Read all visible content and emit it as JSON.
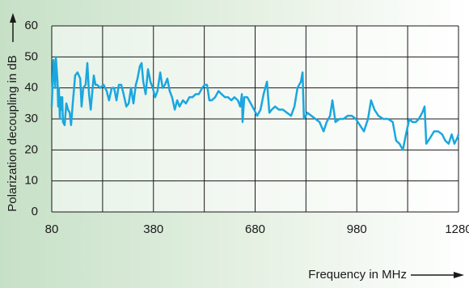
{
  "chart_data": {
    "type": "line",
    "ylabel": "Polarization decoupling in dB",
    "xlabel": "Frequency in MHz",
    "xlim": [
      80,
      1280
    ],
    "ylim": [
      0,
      60
    ],
    "xticks": [
      80,
      380,
      680,
      980,
      1280
    ],
    "xgrid": [
      80,
      230,
      380,
      530,
      680,
      830,
      980,
      1130,
      1280
    ],
    "yticks": [
      0,
      10,
      20,
      30,
      40,
      50,
      60
    ],
    "grid": true,
    "series": [
      {
        "name": "Polarization decoupling",
        "color": "#1aa7e0",
        "x": [
          80,
          85,
          90,
          92,
          97,
          99,
          101,
          104,
          106,
          109,
          111,
          113,
          118,
          123,
          128,
          133,
          137,
          142,
          149,
          156,
          164,
          168,
          173,
          180,
          185,
          190,
          195,
          199,
          204,
          209,
          214,
          223,
          233,
          242,
          249,
          257,
          264,
          271,
          278,
          285,
          292,
          300,
          307,
          314,
          321,
          328,
          333,
          340,
          345,
          350,
          357,
          364,
          371,
          378,
          385,
          392,
          400,
          407,
          414,
          421,
          428,
          435,
          443,
          450,
          457,
          467,
          476,
          486,
          495,
          505,
          514,
          524,
          531,
          538,
          545,
          552,
          562,
          572,
          581,
          591,
          600,
          610,
          619,
          629,
          636,
          641,
          643,
          648,
          657,
          667,
          677,
          686,
          696,
          705,
          715,
          722,
          729,
          739,
          750,
          762,
          774,
          786,
          796,
          805,
          815,
          820,
          824,
          834,
          846,
          858,
          870,
          882,
          891,
          901,
          908,
          917,
          929,
          941,
          953,
          965,
          977,
          989,
          1001,
          1013,
          1022,
          1032,
          1044,
          1058,
          1072,
          1086,
          1096,
          1106,
          1116,
          1125,
          1135,
          1144,
          1154,
          1163,
          1173,
          1180,
          1185,
          1197,
          1208,
          1220,
          1232,
          1241,
          1251,
          1260,
          1268,
          1277,
          1280
        ],
        "values": [
          34,
          49,
          40,
          50,
          42,
          34,
          40,
          30,
          37,
          33,
          37,
          29,
          28,
          35,
          33,
          32,
          28,
          35,
          44,
          45,
          43,
          34,
          40,
          41,
          48,
          38,
          33,
          38,
          44,
          41,
          41,
          40,
          41,
          39,
          36,
          40,
          40,
          36,
          41,
          41,
          38,
          34,
          35,
          40,
          35,
          41,
          43,
          47,
          48,
          42,
          38,
          46,
          42,
          40,
          37,
          39,
          45,
          40,
          41,
          43,
          39,
          37,
          33,
          36,
          34,
          36,
          35,
          37,
          37,
          38,
          38,
          40,
          41,
          41,
          36,
          36,
          37,
          39,
          38,
          37,
          37,
          36,
          37,
          36,
          34,
          38,
          29,
          37,
          37,
          35,
          33,
          31,
          33,
          38,
          42,
          32,
          33,
          34,
          33,
          33,
          32,
          31,
          34,
          40,
          42,
          45,
          30,
          32,
          31,
          30,
          29,
          26,
          29,
          31,
          36,
          29,
          30,
          30,
          31,
          31,
          30,
          28,
          26,
          30,
          36,
          33,
          31,
          30,
          30,
          29,
          23,
          22,
          20,
          25,
          30,
          29,
          29,
          30,
          32,
          34,
          22,
          24,
          26,
          26,
          25,
          23,
          22,
          25,
          22,
          24,
          25
        ]
      }
    ]
  }
}
